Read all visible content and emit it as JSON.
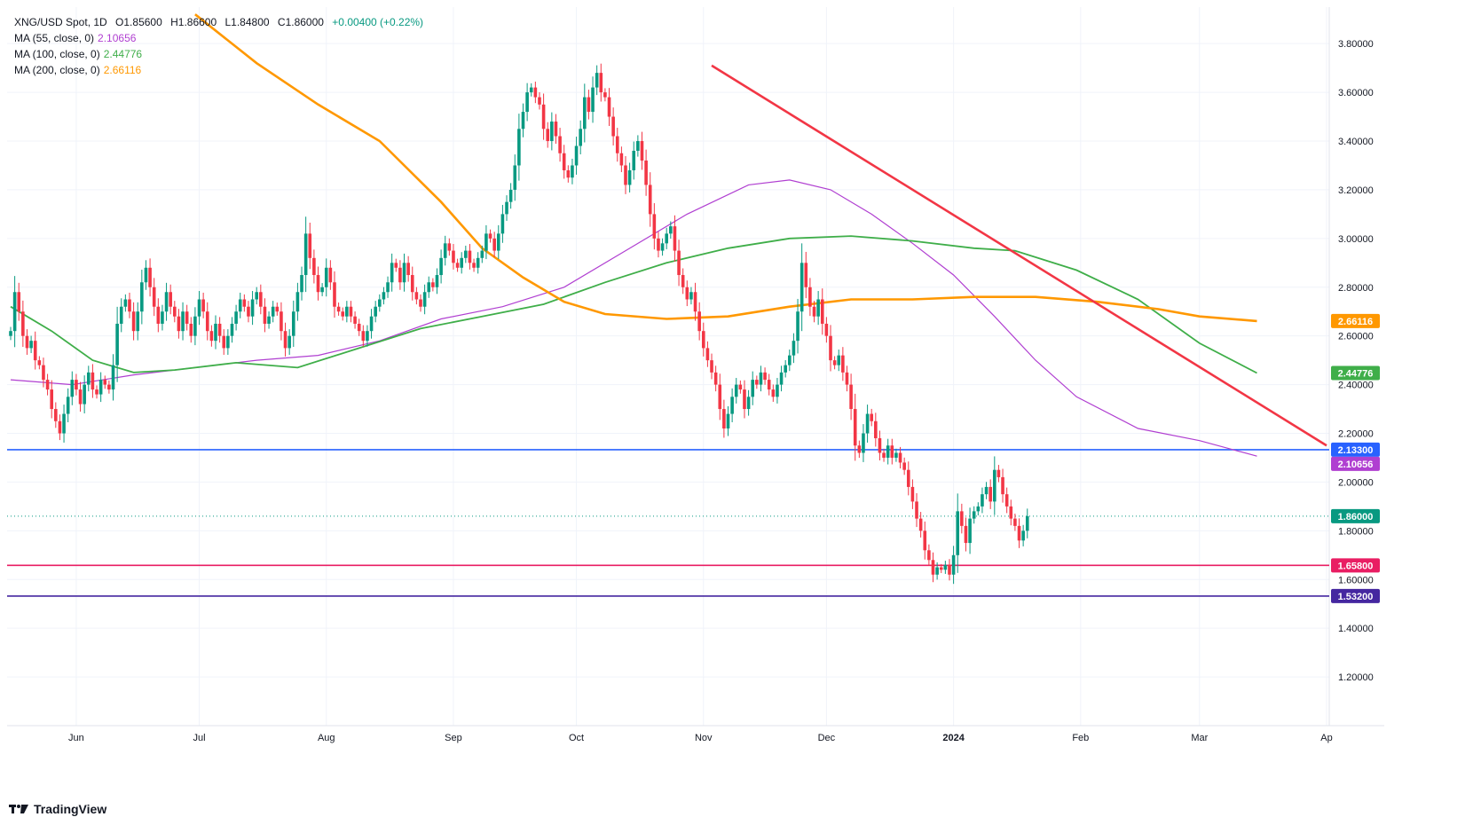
{
  "legend": {
    "symbol": "XNG/USD Spot, 1D",
    "open": "O1.85600",
    "high": "H1.86600",
    "low": "L1.84800",
    "close": "C1.86000",
    "change": "+0.00400 (+0.22%)",
    "ma55_label": "MA (55, close, 0)",
    "ma55_value": "2.10656",
    "ma100_label": "MA (100, close, 0)",
    "ma100_value": "2.44776",
    "ma200_label": "MA (200, close, 0)",
    "ma200_value": "2.66116"
  },
  "brand": "TradingView",
  "colors": {
    "up": "#089981",
    "down": "#f23645",
    "ma55": "#b03fd1",
    "ma100": "#3fae49",
    "ma200": "#ff9800",
    "trend": "#f23645",
    "blue_level": "#2962ff",
    "red_level": "#e91e63",
    "purple_level": "#4527a0",
    "grid": "#f0f3fa",
    "axis_text": "#131722"
  },
  "chart_data": {
    "type": "candlestick",
    "title": "XNG/USD Spot, 1D",
    "ylim": [
      1.0,
      3.95
    ],
    "y_ticks": [
      "3.80000",
      "3.60000",
      "3.40000",
      "3.20000",
      "3.00000",
      "2.80000",
      "2.60000",
      "2.40000",
      "2.20000",
      "2.00000",
      "1.80000",
      "1.60000",
      "1.40000",
      "1.20000"
    ],
    "y_tick_values": [
      3.8,
      3.6,
      3.4,
      3.2,
      3.0,
      2.8,
      2.6,
      2.4,
      2.2,
      2.0,
      1.8,
      1.6,
      1.4,
      1.2
    ],
    "x_ticks": [
      "Jun",
      "Jul",
      "Aug",
      "Sep",
      "Oct",
      "Nov",
      "Dec",
      "2024",
      "Feb",
      "Mar",
      "Ap"
    ],
    "x_tick_days": [
      16,
      46,
      77,
      108,
      138,
      169,
      199,
      230,
      261,
      290,
      321
    ],
    "bold_tick": "2024",
    "last_day": 304,
    "candles_close": [
      2.62,
      2.78,
      2.7,
      2.6,
      2.55,
      2.58,
      2.5,
      2.48,
      2.42,
      2.38,
      2.3,
      2.25,
      2.2,
      2.28,
      2.35,
      2.42,
      2.38,
      2.32,
      2.4,
      2.45,
      2.38,
      2.36,
      2.42,
      2.4,
      2.38,
      2.48,
      2.65,
      2.72,
      2.75,
      2.7,
      2.62,
      2.7,
      2.82,
      2.88,
      2.8,
      2.72,
      2.65,
      2.7,
      2.78,
      2.72,
      2.68,
      2.62,
      2.7,
      2.65,
      2.6,
      2.68,
      2.75,
      2.7,
      2.62,
      2.58,
      2.65,
      2.6,
      2.55,
      2.6,
      2.65,
      2.7,
      2.75,
      2.72,
      2.68,
      2.75,
      2.78,
      2.72,
      2.65,
      2.68,
      2.72,
      2.7,
      2.62,
      2.55,
      2.6,
      2.7,
      2.78,
      2.85,
      3.02,
      2.92,
      2.85,
      2.78,
      2.8,
      2.88,
      2.82,
      2.72,
      2.7,
      2.68,
      2.72,
      2.68,
      2.65,
      2.62,
      2.58,
      2.62,
      2.68,
      2.72,
      2.75,
      2.78,
      2.82,
      2.9,
      2.88,
      2.82,
      2.9,
      2.85,
      2.78,
      2.75,
      2.72,
      2.78,
      2.82,
      2.8,
      2.85,
      2.92,
      2.98,
      2.95,
      2.9,
      2.88,
      2.92,
      2.95,
      2.9,
      2.88,
      2.92,
      2.95,
      3.02,
      3.0,
      2.95,
      3.02,
      3.1,
      3.15,
      3.2,
      3.3,
      3.45,
      3.52,
      3.6,
      3.62,
      3.58,
      3.55,
      3.45,
      3.4,
      3.48,
      3.42,
      3.35,
      3.28,
      3.25,
      3.3,
      3.38,
      3.45,
      3.58,
      3.52,
      3.62,
      3.68,
      3.6,
      3.58,
      3.5,
      3.42,
      3.35,
      3.3,
      3.22,
      3.28,
      3.36,
      3.4,
      3.32,
      3.22,
      3.1,
      3.0,
      2.95,
      2.98,
      3.02,
      3.05,
      2.95,
      2.85,
      2.8,
      2.75,
      2.78,
      2.7,
      2.62,
      2.55,
      2.5,
      2.45,
      2.4,
      2.3,
      2.22,
      2.28,
      2.35,
      2.4,
      2.38,
      2.3,
      2.35,
      2.42,
      2.4,
      2.45,
      2.42,
      2.38,
      2.35,
      2.4,
      2.45,
      2.48,
      2.52,
      2.58,
      2.7,
      2.9,
      2.8,
      2.72,
      2.68,
      2.75,
      2.65,
      2.6,
      2.5,
      2.48,
      2.52,
      2.45,
      2.4,
      2.3,
      2.15,
      2.12,
      2.2,
      2.28,
      2.25,
      2.18,
      2.12,
      2.1,
      2.15,
      2.1,
      2.12,
      2.08,
      2.05,
      1.98,
      1.92,
      1.85,
      1.8,
      1.72,
      1.68,
      1.62,
      1.65,
      1.64,
      1.66,
      1.62,
      1.7,
      1.88,
      1.82,
      1.75,
      1.85,
      1.88,
      1.9,
      1.95,
      1.98,
      1.92,
      2.05,
      2.02,
      1.95,
      1.9,
      1.85,
      1.82,
      1.76,
      1.8,
      1.86
    ],
    "moving_averages": [
      {
        "name": "MA (55, close, 0)",
        "last": 2.10656,
        "points": [
          [
            0,
            2.42
          ],
          [
            15,
            2.4
          ],
          [
            30,
            2.44
          ],
          [
            45,
            2.47
          ],
          [
            60,
            2.5
          ],
          [
            75,
            2.52
          ],
          [
            90,
            2.58
          ],
          [
            105,
            2.67
          ],
          [
            120,
            2.72
          ],
          [
            135,
            2.8
          ],
          [
            150,
            2.95
          ],
          [
            165,
            3.1
          ],
          [
            180,
            3.22
          ],
          [
            190,
            3.24
          ],
          [
            200,
            3.2
          ],
          [
            210,
            3.1
          ],
          [
            220,
            2.98
          ],
          [
            230,
            2.85
          ],
          [
            240,
            2.68
          ],
          [
            250,
            2.5
          ],
          [
            260,
            2.35
          ],
          [
            275,
            2.22
          ],
          [
            290,
            2.17
          ],
          [
            304,
            2.10656
          ]
        ]
      },
      {
        "name": "MA (100, close, 0)",
        "last": 2.44776,
        "points": [
          [
            0,
            2.72
          ],
          [
            10,
            2.62
          ],
          [
            20,
            2.5
          ],
          [
            30,
            2.45
          ],
          [
            40,
            2.46
          ],
          [
            55,
            2.49
          ],
          [
            70,
            2.47
          ],
          [
            85,
            2.55
          ],
          [
            100,
            2.63
          ],
          [
            115,
            2.68
          ],
          [
            130,
            2.73
          ],
          [
            145,
            2.82
          ],
          [
            160,
            2.9
          ],
          [
            175,
            2.96
          ],
          [
            190,
            3.0
          ],
          [
            205,
            3.01
          ],
          [
            220,
            2.99
          ],
          [
            235,
            2.96
          ],
          [
            245,
            2.95
          ],
          [
            260,
            2.87
          ],
          [
            275,
            2.75
          ],
          [
            290,
            2.57
          ],
          [
            304,
            2.44776
          ]
        ]
      },
      {
        "name": "MA (200, close, 0)",
        "last": 2.66116,
        "points": [
          [
            45,
            3.92
          ],
          [
            60,
            3.72
          ],
          [
            75,
            3.55
          ],
          [
            90,
            3.4
          ],
          [
            105,
            3.15
          ],
          [
            115,
            2.96
          ],
          [
            125,
            2.84
          ],
          [
            135,
            2.74
          ],
          [
            145,
            2.69
          ],
          [
            160,
            2.67
          ],
          [
            175,
            2.68
          ],
          [
            190,
            2.72
          ],
          [
            205,
            2.75
          ],
          [
            220,
            2.75
          ],
          [
            235,
            2.76
          ],
          [
            250,
            2.76
          ],
          [
            265,
            2.74
          ],
          [
            280,
            2.71
          ],
          [
            290,
            2.68
          ],
          [
            304,
            2.66116
          ]
        ]
      }
    ],
    "trendline": [
      [
        171,
        3.71
      ],
      [
        321,
        2.15
      ]
    ],
    "horizontal_levels": [
      {
        "value": 2.133,
        "label": "2.13300",
        "color": "#2962ff"
      },
      {
        "value": 1.658,
        "label": "1.65800",
        "color": "#e91e63"
      },
      {
        "value": 1.532,
        "label": "1.53200",
        "color": "#4527a0"
      }
    ],
    "price_labels": [
      {
        "value": 2.66116,
        "label": "2.66116",
        "color": "#ff9800"
      },
      {
        "value": 2.44776,
        "label": "2.44776",
        "color": "#3fae49"
      },
      {
        "value": 2.133,
        "label": "2.13300",
        "color": "#2962ff"
      },
      {
        "value": 2.10656,
        "label": "2.10656",
        "color": "#b03fd1"
      },
      {
        "value": 1.86,
        "label": "1.86000",
        "color": "#089981"
      },
      {
        "value": 1.658,
        "label": "1.65800",
        "color": "#e91e63"
      },
      {
        "value": 1.532,
        "label": "1.53200",
        "color": "#4527a0"
      }
    ],
    "last_price": 1.86
  }
}
